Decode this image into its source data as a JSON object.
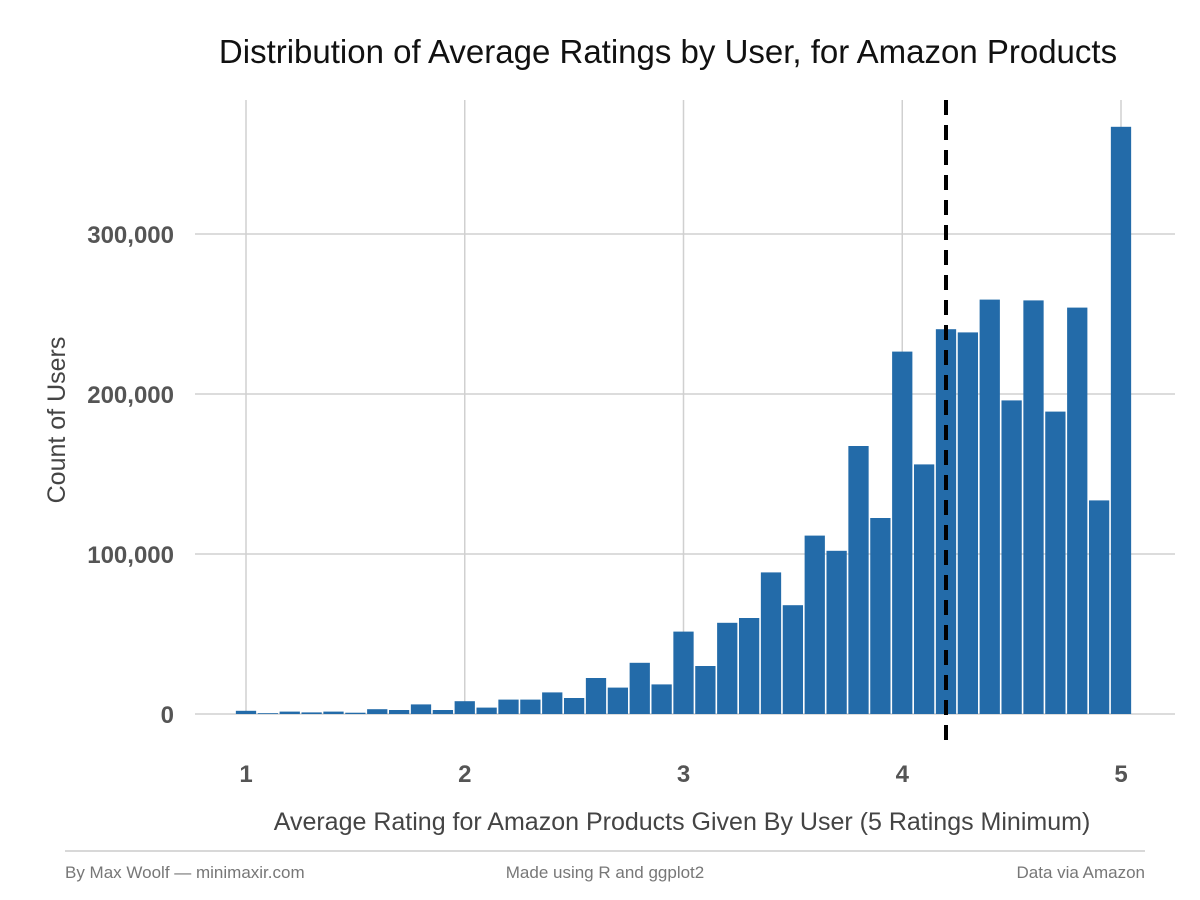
{
  "chart_data": {
    "type": "bar",
    "title": "Distribution of Average Ratings by User, for Amazon Products",
    "xlabel": "Average Rating for Amazon Products Given By User (5 Ratings Minimum)",
    "ylabel": "Count of Users",
    "xlim": [
      0.75,
      5.1
    ],
    "ylim": [
      0,
      370000
    ],
    "x_ticks": [
      1,
      2,
      3,
      4,
      5
    ],
    "x_tick_labels": [
      "1",
      "2",
      "3",
      "4",
      "5"
    ],
    "y_ticks": [
      0,
      100000,
      200000,
      300000
    ],
    "y_tick_labels": [
      "0",
      "100,000",
      "200,000",
      "300,000"
    ],
    "bin_width": 0.1,
    "x": [
      1.0,
      1.1,
      1.2,
      1.3,
      1.4,
      1.5,
      1.6,
      1.7,
      1.8,
      1.9,
      2.0,
      2.1,
      2.2,
      2.3,
      2.4,
      2.5,
      2.6,
      2.7,
      2.8,
      2.9,
      3.0,
      3.1,
      3.2,
      3.3,
      3.4,
      3.5,
      3.6,
      3.7,
      3.8,
      3.9,
      4.0,
      4.1,
      4.2,
      4.3,
      4.4,
      4.5,
      4.6,
      4.7,
      4.8,
      4.9,
      5.0
    ],
    "values": [
      2000,
      500,
      1500,
      1000,
      1500,
      800,
      3000,
      2500,
      6000,
      2500,
      8000,
      4000,
      9000,
      9000,
      13500,
      10000,
      22500,
      16500,
      32000,
      18500,
      51500,
      30000,
      57000,
      60000,
      88500,
      68000,
      111500,
      102000,
      167500,
      122500,
      226500,
      156000,
      240500,
      238500,
      259000,
      196000,
      258500,
      189000,
      254000,
      133500,
      367000
    ],
    "bar_color": "#236ba9",
    "mean_line": 4.2,
    "mean_line_color": "#000000",
    "grid": true,
    "legend": "none"
  },
  "footer": {
    "left": "By Max Woolf — minimaxir.com",
    "center": "Made using R and ggplot2",
    "right": "Data via Amazon"
  }
}
